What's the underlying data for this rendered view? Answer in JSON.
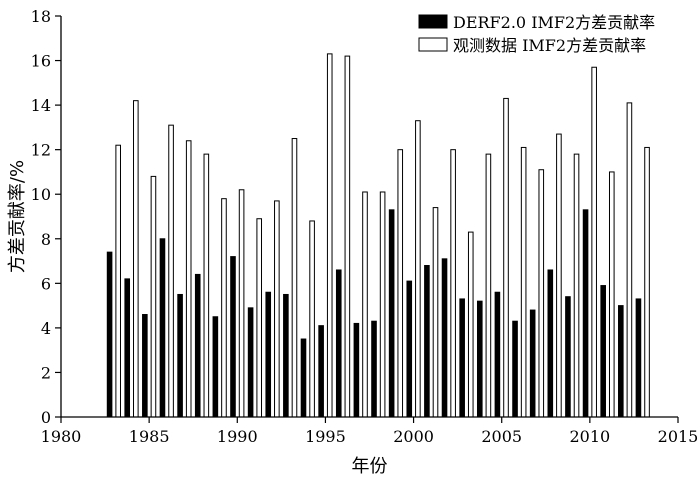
{
  "chart_data": {
    "type": "bar",
    "xlabel": "年份",
    "ylabel": "方差贡献率/%",
    "xlim": [
      1980,
      2015
    ],
    "ylim": [
      0,
      18
    ],
    "xticks": [
      1980,
      1985,
      1990,
      1995,
      2000,
      2005,
      2010,
      2015
    ],
    "yticks": [
      0,
      2,
      4,
      6,
      8,
      10,
      12,
      14,
      16,
      18
    ],
    "grid": false,
    "legend_position": "top-right",
    "x": [
      1983,
      1984,
      1985,
      1986,
      1987,
      1988,
      1989,
      1990,
      1991,
      1992,
      1993,
      1994,
      1995,
      1996,
      1997,
      1998,
      1999,
      2000,
      2001,
      2002,
      2003,
      2004,
      2005,
      2006,
      2007,
      2008,
      2009,
      2010,
      2011,
      2012,
      2013
    ],
    "series": [
      {
        "name": "DERF2.0 IMF2方差贡献率",
        "color": "#000000",
        "values": [
          7.4,
          6.2,
          4.6,
          8.0,
          5.5,
          6.4,
          4.5,
          7.2,
          4.9,
          5.6,
          5.5,
          3.5,
          4.1,
          6.6,
          4.2,
          4.3,
          9.3,
          6.1,
          6.8,
          7.1,
          5.3,
          5.2,
          5.6,
          4.3,
          4.8,
          6.6,
          5.4,
          9.3,
          5.9,
          5.0,
          5.3
        ]
      },
      {
        "name": "观测数据 IMF2方差贡献率",
        "color": "#ffffff",
        "values": [
          12.2,
          14.2,
          10.8,
          13.1,
          12.4,
          11.8,
          9.8,
          10.2,
          8.9,
          9.7,
          12.5,
          8.8,
          16.3,
          16.2,
          10.1,
          10.1,
          12.0,
          13.3,
          9.4,
          12.0,
          8.3,
          11.8,
          14.3,
          12.1,
          11.1,
          12.7,
          11.8,
          15.7,
          11.0,
          14.1,
          12.1
        ]
      }
    ]
  }
}
